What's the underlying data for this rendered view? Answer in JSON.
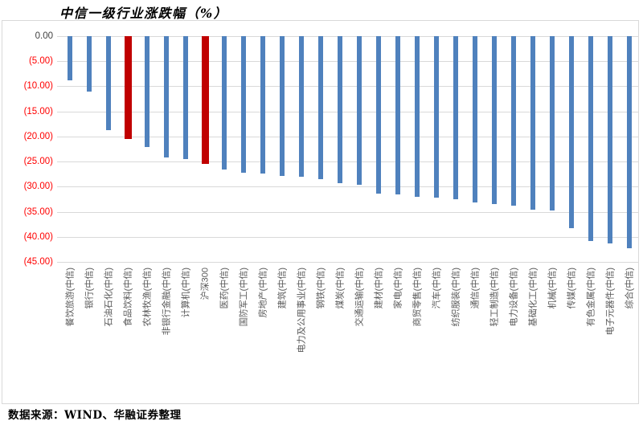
{
  "source_note": "数据来源：WIND、华融证券整理",
  "chart_data": {
    "type": "bar",
    "title": "中信一级行业涨跌幅（%）",
    "categories": [
      "餐饮旅游(中信)",
      "银行(中信)",
      "石油石化(中信)",
      "食品饮料(中信)",
      "农林牧渔(中信)",
      "非银行金融(中信)",
      "计算机(中信)",
      "沪深300",
      "医药(中信)",
      "国防军工(中信)",
      "房地产(中信)",
      "建筑(中信)",
      "电力及公用事业(中信)",
      "钢铁(中信)",
      "煤炭(中信)",
      "交通运输(中信)",
      "建材(中信)",
      "家电(中信)",
      "商贸零售(中信)",
      "汽车(中信)",
      "纺织服装(中信)",
      "通信(中信)",
      "轻工制造(中信)",
      "电力设备(中信)",
      "基础化工(中信)",
      "机械(中信)",
      "传媒(中信)",
      "有色金属(中信)",
      "电子元器件(中信)",
      "综合(中信)"
    ],
    "values": [
      -8.8,
      -11.1,
      -18.8,
      -20.5,
      -22.1,
      -24.2,
      -24.5,
      -25.4,
      -26.6,
      -27.2,
      -27.3,
      -27.8,
      -28.0,
      -28.5,
      -29.3,
      -29.6,
      -31.3,
      -31.6,
      -32.1,
      -32.2,
      -32.5,
      -33.2,
      -33.4,
      -33.8,
      -34.6,
      -34.7,
      -38.2,
      -40.9,
      -41.3,
      -42.3
    ],
    "highlight_indices": [
      3,
      7
    ],
    "highlighted_categories": [
      "食品饮料(中信)",
      "沪深300"
    ],
    "ylim": [
      -45,
      0
    ],
    "ytick_step": 5,
    "ytick_labels": [
      "0.00",
      "(5.00)",
      "(10.00)",
      "(15.00)",
      "(20.00)",
      "(25.00)",
      "(30.00)",
      "(35.00)",
      "(40.00)",
      "(45.00)"
    ],
    "grid": true,
    "legend": false,
    "xlabel": "",
    "ylabel": "",
    "colors": {
      "bar": "#4F81BD",
      "highlight": "#C00000",
      "grid": "#D9D9D9",
      "frame_border": "#D9D9D9",
      "axis_label_negative": "#FF0000",
      "axis_label_zero": "#404040",
      "category_label": "#595959"
    }
  }
}
